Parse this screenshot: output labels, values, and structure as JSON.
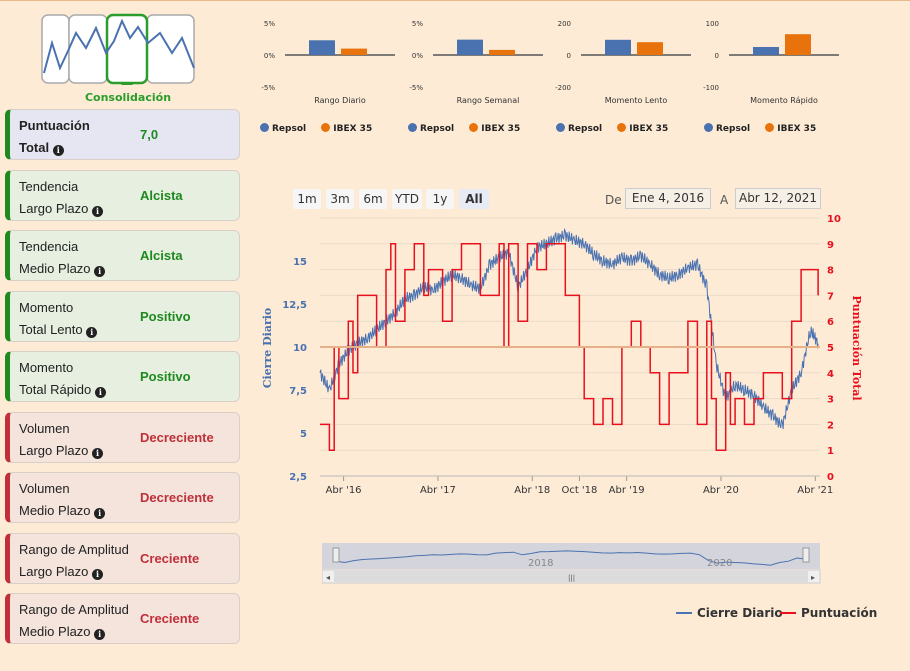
{
  "pattern": {
    "label": "Consolidación",
    "icon": "consolidation-pattern-icon"
  },
  "cards": [
    {
      "line1": "Puntuación",
      "line2": "Total",
      "value": "7,0",
      "status": "score"
    },
    {
      "line1": "Tendencia",
      "line2": "Largo Plazo",
      "value": "Alcista",
      "status": "green"
    },
    {
      "line1": "Tendencia",
      "line2": "Medio Plazo",
      "value": "Alcista",
      "status": "green"
    },
    {
      "line1": "Momento",
      "line2": "Total Lento",
      "value": "Positivo",
      "status": "green"
    },
    {
      "line1": "Momento",
      "line2": "Total Rápido",
      "value": "Positivo",
      "status": "green"
    },
    {
      "line1": "Volumen",
      "line2": "Largo Plazo",
      "value": "Decreciente",
      "status": "red"
    },
    {
      "line1": "Volumen",
      "line2": "Medio Plazo",
      "value": "Decreciente",
      "status": "red"
    },
    {
      "line1": "Rango de Amplitud",
      "line2": "Largo Plazo",
      "value": "Creciente",
      "status": "red"
    },
    {
      "line1": "Rango de Amplitud",
      "line2": "Medio Plazo",
      "value": "Creciente",
      "status": "red"
    }
  ],
  "colors": {
    "repsol": "#4a72b0",
    "ibex": "#e8730c",
    "price": "#4a72b0",
    "score": "#e8101c",
    "green": "#1e8a1e",
    "red": "#c0303a"
  },
  "chart_data": [
    {
      "type": "bar",
      "title": "Rango Diario",
      "categories": [
        "Repsol",
        "IBEX 35"
      ],
      "values": [
        2.3,
        1.0
      ],
      "yticks": [
        "5%",
        "0%",
        "-5%"
      ],
      "ylim": [
        -5,
        5
      ]
    },
    {
      "type": "bar",
      "title": "Rango Semanal",
      "categories": [
        "Repsol",
        "IBEX 35"
      ],
      "values": [
        2.4,
        0.8
      ],
      "yticks": [
        "5%",
        "0%",
        "-5%"
      ],
      "ylim": [
        -5,
        5
      ]
    },
    {
      "type": "bar",
      "title": "Momento Lento",
      "categories": [
        "Repsol",
        "IBEX 35"
      ],
      "values": [
        95,
        80
      ],
      "yticks": [
        "200",
        "0",
        "-200"
      ],
      "ylim": [
        -200,
        200
      ]
    },
    {
      "type": "bar",
      "title": "Momento Rápido",
      "categories": [
        "Repsol",
        "IBEX 35"
      ],
      "values": [
        25,
        65
      ],
      "yticks": [
        "100",
        "0",
        "-100"
      ],
      "ylim": [
        -100,
        100
      ]
    },
    {
      "type": "line",
      "series": [
        {
          "name": "Cierre Diario",
          "axis": "left",
          "x": [
            2016.0,
            2016.1,
            2016.2,
            2016.3,
            2016.4,
            2016.5,
            2016.6,
            2016.7,
            2016.8,
            2016.9,
            2017.0,
            2017.1,
            2017.2,
            2017.3,
            2017.4,
            2017.5,
            2017.6,
            2017.7,
            2017.8,
            2017.9,
            2018.0,
            2018.1,
            2018.2,
            2018.3,
            2018.4,
            2018.5,
            2018.6,
            2018.7,
            2018.8,
            2018.9,
            2019.0,
            2019.1,
            2019.2,
            2019.3,
            2019.4,
            2019.5,
            2019.6,
            2019.7,
            2019.8,
            2019.9,
            2020.0,
            2020.1,
            2020.2,
            2020.3,
            2020.4,
            2020.5,
            2020.6,
            2020.7,
            2020.8,
            2020.9,
            2021.0,
            2021.1,
            2021.2,
            2021.28
          ],
          "y": [
            8.5,
            7.5,
            9.0,
            9.8,
            10.2,
            10.5,
            11.0,
            11.5,
            12.0,
            12.8,
            13.0,
            13.5,
            13.3,
            13.8,
            14.2,
            14.0,
            13.6,
            13.4,
            14.8,
            15.2,
            15.5,
            13.5,
            14.5,
            15.8,
            16.0,
            16.3,
            16.5,
            16.2,
            16.0,
            15.4,
            15.0,
            14.8,
            15.2,
            15.0,
            15.3,
            14.8,
            14.2,
            14.0,
            14.2,
            14.6,
            14.8,
            13.5,
            9.0,
            7.0,
            7.8,
            7.5,
            7.2,
            6.5,
            6.0,
            5.4,
            7.5,
            8.5,
            11.0,
            10.2
          ]
        },
        {
          "name": "Puntuación",
          "axis": "right",
          "x": [
            2016.0,
            2016.1,
            2016.15,
            2016.2,
            2016.3,
            2016.35,
            2016.4,
            2016.5,
            2016.6,
            2016.7,
            2016.75,
            2016.8,
            2016.9,
            2017.0,
            2017.1,
            2017.15,
            2017.2,
            2017.3,
            2017.4,
            2017.5,
            2017.6,
            2017.7,
            2017.8,
            2017.9,
            2017.95,
            2018.0,
            2018.1,
            2018.2,
            2018.3,
            2018.4,
            2018.5,
            2018.6,
            2018.7,
            2018.75,
            2018.8,
            2018.9,
            2019.0,
            2019.1,
            2019.2,
            2019.3,
            2019.4,
            2019.5,
            2019.6,
            2019.7,
            2019.8,
            2019.9,
            2020.0,
            2020.1,
            2020.15,
            2020.2,
            2020.3,
            2020.35,
            2020.4,
            2020.5,
            2020.6,
            2020.7,
            2020.8,
            2020.9,
            2021.0,
            2021.1,
            2021.2,
            2021.28
          ],
          "y": [
            2,
            1,
            5,
            3,
            6,
            4,
            7,
            7,
            5,
            8,
            9,
            6,
            8,
            9,
            7,
            8,
            8,
            6,
            8,
            9,
            9,
            7,
            7,
            9,
            5,
            9,
            6,
            9,
            8,
            9,
            9,
            7,
            7,
            5,
            3,
            2,
            3,
            2,
            5,
            6,
            5,
            4,
            2,
            4,
            4,
            6,
            2,
            6,
            3,
            1,
            4,
            2,
            3,
            2,
            3,
            4,
            4,
            3,
            6,
            8,
            8,
            7
          ]
        }
      ],
      "xticks": [
        "Abr '16",
        "Abr '17",
        "Abr '18",
        "Oct '18",
        "Abr '19",
        "Abr '20",
        "Abr '21"
      ],
      "xtick_values": [
        2016.25,
        2017.25,
        2018.25,
        2018.75,
        2019.25,
        2020.25,
        2021.25
      ],
      "yleft_ticks": [
        "2,5",
        "5",
        "7,5",
        "10",
        "12,5",
        "15"
      ],
      "yleft_values": [
        2.5,
        5,
        7.5,
        10,
        12.5,
        15
      ],
      "yright_ticks": [
        "0",
        "1",
        "2",
        "3",
        "4",
        "5",
        "6",
        "7",
        "8",
        "9",
        "10"
      ],
      "ylabel_left": "Cierre Diario",
      "ylabel_right": "Puntuación Total",
      "xlim": [
        2016.0,
        2021.3
      ],
      "ylim_left": [
        2.5,
        17.5
      ],
      "ylim_right": [
        0,
        10
      ],
      "reference_line": 5,
      "navigator_labels": [
        "2018",
        "2020"
      ]
    }
  ],
  "range_buttons": [
    "1m",
    "3m",
    "6m",
    "YTD",
    "1y",
    "All"
  ],
  "date_range": {
    "from_label": "De",
    "from": "Ene 4, 2016",
    "to_label": "A",
    "to": "Abr 12, 2021"
  },
  "legend": {
    "mini_a": "Repsol",
    "mini_b": "IBEX 35",
    "main_a": "Cierre Diario",
    "main_b": "Puntuación"
  }
}
